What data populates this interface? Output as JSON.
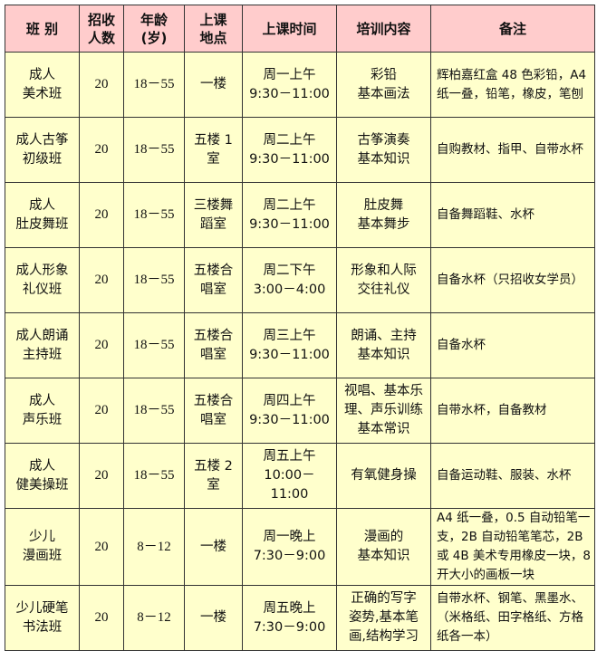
{
  "table": {
    "headers": [
      "班 别",
      "招收\n人数",
      "年龄\n(岁)",
      "上课\n地点",
      "上课时间",
      "培训内容",
      "备注"
    ],
    "rows": [
      [
        "成人\n美术班",
        "20",
        "18－55",
        "一楼",
        "周一上午\n9:30－11:00",
        "彩铅\n基本画法",
        "辉柏嘉红盒 48 色彩铅，A4 纸一叠，铅笔，橡皮，笔刨"
      ],
      [
        "成人古筝\n初级班",
        "20",
        "18－55",
        "五楼 1\n室",
        "周二上午\n9:30－11:00",
        "古筝演奏\n基本知识",
        "自购教材、指甲、自带水杯"
      ],
      [
        "成人\n肚皮舞班",
        "20",
        "18－55",
        "三楼舞\n蹈室",
        "周二上午\n9:30－11:00",
        "肚皮舞\n基本舞步",
        "自备舞蹈鞋、水杯"
      ],
      [
        "成人形象\n礼仪班",
        "20",
        "18－55",
        "五楼合\n唱室",
        "周二下午\n3:00－4:00",
        "形象和人际\n交往礼仪",
        "自备水杯（只招收女学员）"
      ],
      [
        "成人朗诵\n主持班",
        "20",
        "18－55",
        "五楼合\n唱室",
        "周三上午\n9:30－11:00",
        "朗诵、主持\n基本知识",
        "自备水杯"
      ],
      [
        "成人\n声乐班",
        "20",
        "18－55",
        "五楼合\n唱室",
        "周四上午\n9:30－11:00",
        "视唱、基本乐\n理、声乐训练\n基本常识",
        "自带水杯，自备教材"
      ],
      [
        "成人\n健美操班",
        "20",
        "18－55",
        "五楼 2\n室",
        "周五上午\n10:00－11:00",
        "有氧健身操",
        "自备运动鞋、服装、水杯"
      ],
      [
        "少儿\n漫画班",
        "20",
        "8－12",
        "一楼",
        "周一晚上\n7:30－9:00",
        "漫画的\n基本知识",
        "A4 纸一叠，0.5 自动铅笔一支，2B 自动铅笔笔芯，2B 或 4B 美术专用橡皮一块，8 开大小的画板一块"
      ],
      [
        "少儿硬笔\n书法班",
        "20",
        "8－12",
        "一楼",
        "周五晚上\n7:30－9:00",
        "正确的写字\n姿势,基本笔\n画,结构学习",
        "自带水杯、钢笔、黑墨水、（米格纸、田字格纸、方格纸各一本）"
      ]
    ]
  },
  "colors": {
    "header_bg": "#ffcccc",
    "body_bg": "#ffffcc",
    "border": "#333333"
  }
}
